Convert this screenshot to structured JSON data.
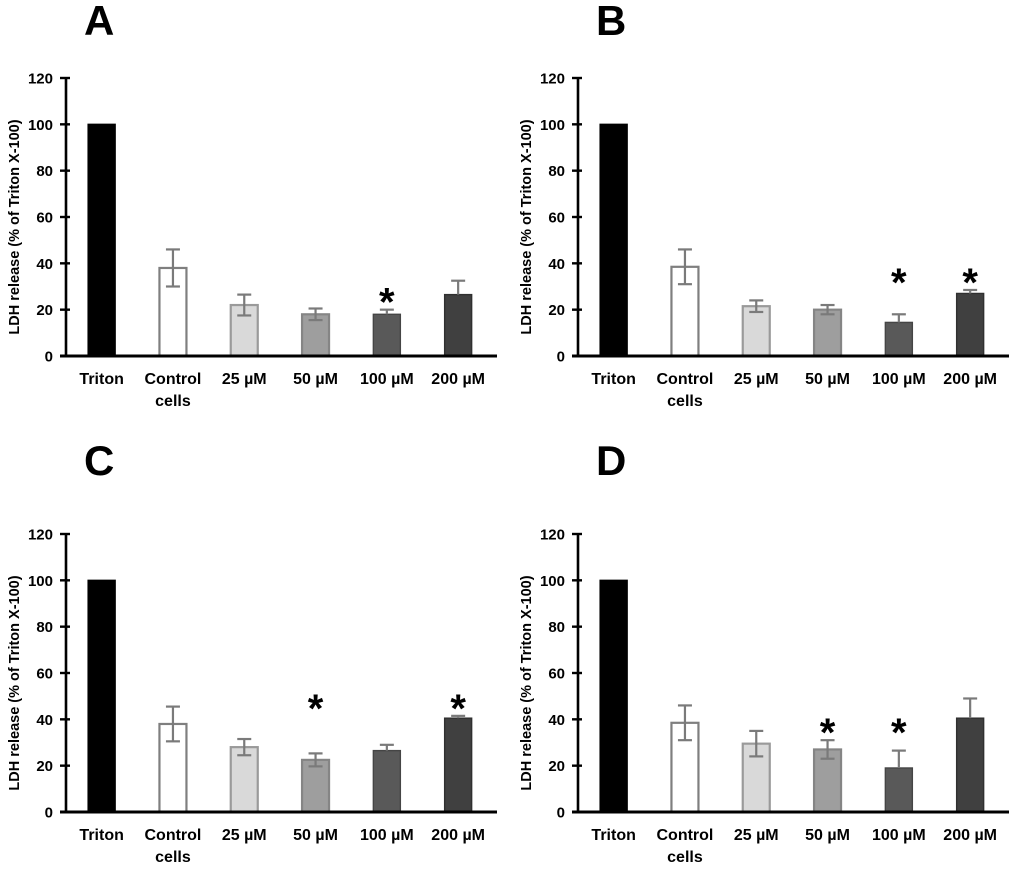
{
  "style": {
    "bar_fill": [
      "#000000",
      "#ffffff",
      "#d9d9d9",
      "#9e9e9e",
      "#595959",
      "#404040"
    ],
    "bar_stroke": [
      "#000000",
      "#7f7f7f",
      "#9a9a9a",
      "#858585",
      "#454545",
      "#303030"
    ],
    "error_bar_color": "#7a7a7a",
    "axis_color": "#000000",
    "text_color": "#000000",
    "significance_marker": "*"
  },
  "chart_data": [
    {
      "type": "bar",
      "panel_label": "A",
      "title": "",
      "xlabel": "",
      "ylabel": "LDH release (% of Triton X-100)",
      "ylim": [
        0,
        120
      ],
      "yticks": [
        0,
        20,
        40,
        60,
        80,
        100,
        120
      ],
      "grid": false,
      "legend_position": "none",
      "categories": [
        "Triton",
        "Control\ncells",
        "25 µM",
        "50 µM",
        "100 µM",
        "200 µM"
      ],
      "values": [
        100,
        38,
        22,
        18,
        18,
        26.5
      ],
      "errors": [
        0,
        8,
        4.5,
        2.5,
        2,
        6
      ],
      "significant": [
        false,
        false,
        false,
        false,
        true,
        false
      ]
    },
    {
      "type": "bar",
      "panel_label": "B",
      "title": "",
      "xlabel": "",
      "ylabel": "LDH release (% of Triton X-100)",
      "ylim": [
        0,
        120
      ],
      "yticks": [
        0,
        20,
        40,
        60,
        80,
        100,
        120
      ],
      "grid": false,
      "legend_position": "none",
      "categories": [
        "Triton",
        "Control\ncells",
        "25 µM",
        "50 µM",
        "100 µM",
        "200 µM"
      ],
      "values": [
        100,
        38.5,
        21.5,
        20,
        14.5,
        27
      ],
      "errors": [
        0,
        7.5,
        2.5,
        2,
        3.5,
        1.5
      ],
      "significant": [
        false,
        false,
        false,
        false,
        true,
        true
      ]
    },
    {
      "type": "bar",
      "panel_label": "C",
      "title": "",
      "xlabel": "",
      "ylabel": "LDH release (% of Triton X-100)",
      "ylim": [
        0,
        120
      ],
      "yticks": [
        0,
        20,
        40,
        60,
        80,
        100,
        120
      ],
      "grid": false,
      "legend_position": "none",
      "categories": [
        "Triton",
        "Control\ncells",
        "25 µM",
        "50 µM",
        "100 µM",
        "200 µM"
      ],
      "values": [
        100,
        38,
        28,
        22.5,
        26.5,
        40.5
      ],
      "errors": [
        0,
        7.5,
        3.5,
        2.8,
        2.5,
        1
      ],
      "significant": [
        false,
        false,
        false,
        true,
        false,
        true
      ]
    },
    {
      "type": "bar",
      "panel_label": "D",
      "title": "",
      "xlabel": "",
      "ylabel": "LDH release (% of Triton X-100)",
      "ylim": [
        0,
        120
      ],
      "yticks": [
        0,
        20,
        40,
        60,
        80,
        100,
        120
      ],
      "grid": false,
      "legend_position": "none",
      "categories": [
        "Triton",
        "Control\ncells",
        "25 µM",
        "50 µM",
        "100 µM",
        "200 µM"
      ],
      "values": [
        100,
        38.5,
        29.5,
        27,
        19,
        40.5
      ],
      "errors": [
        0,
        7.5,
        5.5,
        4,
        7.5,
        8.5
      ],
      "significant": [
        false,
        false,
        false,
        true,
        true,
        false
      ]
    }
  ]
}
